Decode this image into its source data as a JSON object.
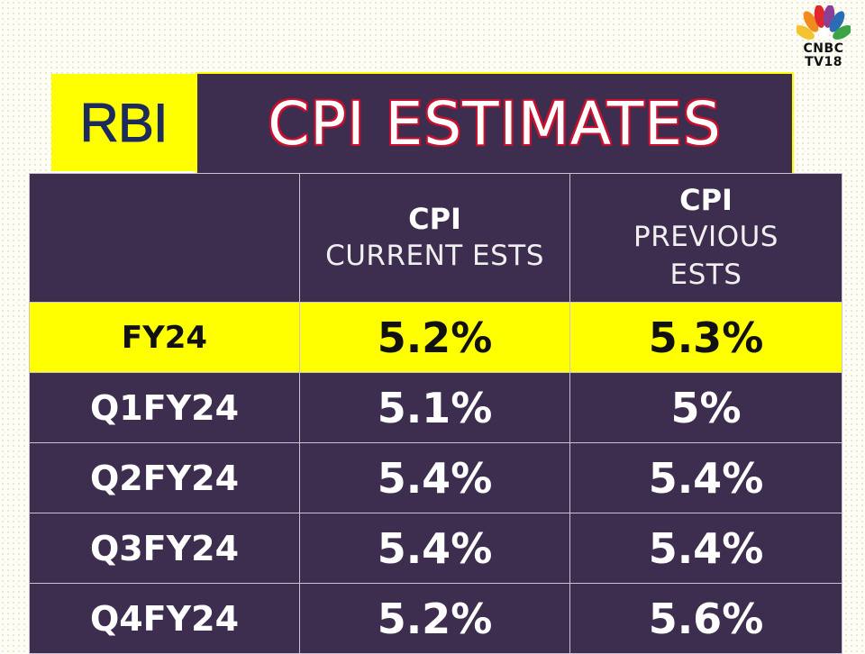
{
  "brand": {
    "logo_line1": "CNBC",
    "logo_line2": "TV18",
    "peacock_colors": [
      "#f4c430",
      "#f08c1e",
      "#e0282e",
      "#8c3f96",
      "#2a6db5",
      "#3aa447"
    ]
  },
  "header": {
    "badge": "RBI",
    "title": "CPI ESTIMATES",
    "colors": {
      "badge_bg": "#ffff00",
      "badge_text": "#1c2a5c",
      "title_bg": "#3d2d4f",
      "title_outline": "#c8102e"
    }
  },
  "table": {
    "columns": [
      {
        "main": "",
        "sub": ""
      },
      {
        "main": "CPI",
        "sub": "CURRENT ESTS"
      },
      {
        "main": "CPI",
        "sub": "PREVIOUS ESTS",
        "sub_line1": "PREVIOUS",
        "sub_line2": "ESTS"
      }
    ],
    "rows": [
      {
        "label": "FY24",
        "current": "5.2%",
        "previous": "5.3%",
        "highlight": true
      },
      {
        "label": "Q1FY24",
        "current": "5.1%",
        "previous": "5%"
      },
      {
        "label": "Q2FY24",
        "current": "5.4%",
        "previous": "5.4%"
      },
      {
        "label": "Q3FY24",
        "current": "5.4%",
        "previous": "5.4%"
      },
      {
        "label": "Q4FY24",
        "current": "5.2%",
        "previous": "5.6%"
      }
    ],
    "colors": {
      "row_bg": "#3d2d4f",
      "highlight_bg": "#ffff00",
      "text": "#ffffff"
    }
  }
}
